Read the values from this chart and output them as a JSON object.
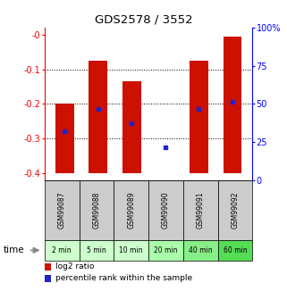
{
  "title": "GDS2578 / 3552",
  "samples": [
    "GSM99087",
    "GSM99088",
    "GSM99089",
    "GSM99090",
    "GSM99091",
    "GSM99092"
  ],
  "time_labels": [
    "2 min",
    "5 min",
    "10 min",
    "20 min",
    "40 min",
    "60 min"
  ],
  "time_colors": [
    "#ccffcc",
    "#ccffcc",
    "#ccffcc",
    "#aaffaa",
    "#88ee88",
    "#55dd55"
  ],
  "log2_values": [
    -0.2,
    -0.075,
    -0.135,
    -0.4,
    -0.075,
    -0.005
  ],
  "bar_bottom": -0.4,
  "percentile_values": [
    -0.28,
    -0.215,
    -0.255,
    -0.325,
    -0.215,
    -0.195
  ],
  "bar_color": "#cc1100",
  "percentile_color": "#2222cc",
  "ylim_left": [
    -0.42,
    0.02
  ],
  "ylim_right": [
    0,
    100
  ],
  "yticks_left": [
    -0.4,
    -0.3,
    -0.2,
    -0.1,
    0.0
  ],
  "yticks_right": [
    0,
    25,
    50,
    75,
    100
  ],
  "ytick_labels_left": [
    "-0.4",
    "-0.3",
    "-0.2",
    "-0.1",
    "-0"
  ],
  "ytick_labels_right": [
    "0",
    "25",
    "50",
    "75",
    "100%"
  ],
  "grid_values": [
    -0.1,
    -0.2,
    -0.3
  ],
  "bar_width": 0.55,
  "sample_box_color": "#cccccc",
  "legend_log2_label": "log2 ratio",
  "legend_pct_label": "percentile rank within the sample",
  "time_label": "time"
}
